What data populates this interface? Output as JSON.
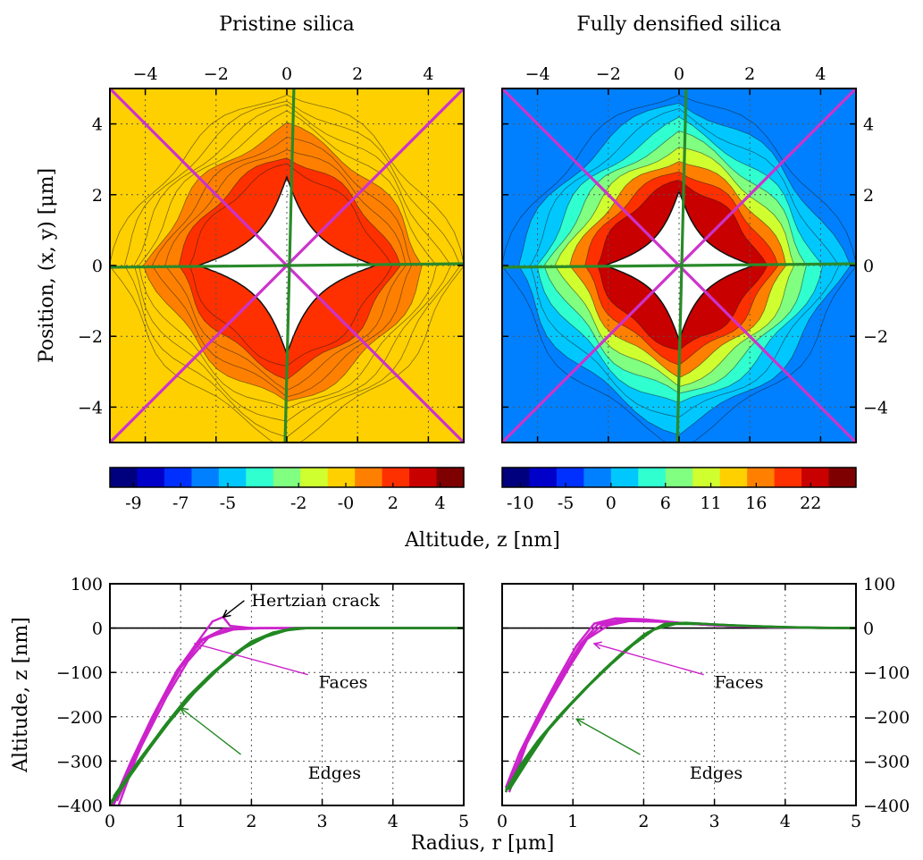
{
  "colors": {
    "faces": "#cc22cc",
    "edges": "#228822",
    "diagonal_lines": "#cc33cc",
    "axis_lines": "#2a8a2a",
    "colormap": [
      "#00007f",
      "#0000c8",
      "#0030ff",
      "#0080ff",
      "#00c8ff",
      "#30ffd0",
      "#80ff80",
      "#d0ff30",
      "#ffd000",
      "#ff8000",
      "#ff3000",
      "#c80000",
      "#7f0000"
    ]
  },
  "chart_data": [
    {
      "id": "map_pristine",
      "type": "heatmap",
      "title": "Pristine silica",
      "ylabel": "Position, (x, y) [μm]",
      "xlim": [
        -5,
        5
      ],
      "ylim": [
        -5,
        5
      ],
      "x_ticks": [
        "−4",
        "−2",
        "0",
        "2",
        "4"
      ],
      "y_ticks": [
        "4",
        "2",
        "0",
        "−2",
        "−4"
      ],
      "x_tick_values": [
        -4,
        -2,
        0,
        2,
        4
      ],
      "y_tick_values": [
        4,
        2,
        0,
        -2,
        -4
      ],
      "grid": true,
      "indent_half_diagonal": 2.5,
      "background_level": 0.62,
      "pileup_level": 0.82,
      "colorbar": {
        "ticks": [
          "-9",
          "-7",
          "-5",
          "-2",
          "-0",
          "2",
          "4"
        ],
        "range": [
          -10,
          5
        ],
        "tick_values": [
          -9,
          -7,
          -5,
          -2,
          0,
          2,
          4
        ]
      }
    },
    {
      "id": "map_densified",
      "type": "heatmap",
      "title": "Fully densified silica",
      "xlim": [
        -5,
        5
      ],
      "ylim": [
        -5,
        5
      ],
      "x_ticks": [
        "−4",
        "−2",
        "0",
        "2",
        "4"
      ],
      "y_ticks": [
        "4",
        "2",
        "0",
        "−2",
        "−4"
      ],
      "x_tick_values": [
        -4,
        -2,
        0,
        2,
        4
      ],
      "y_tick_values": [
        4,
        2,
        0,
        -2,
        -4
      ],
      "grid": true,
      "indent_half_diagonal": 2.1,
      "background_level": 0.28,
      "pileup_level": 0.92,
      "colorbar": {
        "ticks": [
          "-10",
          "-5",
          "0",
          "6",
          "11",
          "16",
          "22"
        ],
        "range": [
          -12,
          27
        ],
        "tick_values": [
          -10,
          -5,
          0,
          6,
          11,
          16,
          22
        ]
      }
    },
    {
      "id": "profile_pristine",
      "type": "line",
      "xlabel": "Radius, r [μm]",
      "ylabel": "Altitude, z [nm]",
      "xlim": [
        0,
        5
      ],
      "ylim": [
        -400,
        100
      ],
      "x_ticks": [
        "0",
        "1",
        "2",
        "3",
        "4",
        "5"
      ],
      "y_ticks": [
        "100",
        "0",
        "−100",
        "−200",
        "−300",
        "−400"
      ],
      "x_tick_values": [
        0,
        1,
        2,
        3,
        4,
        5
      ],
      "y_tick_values": [
        100,
        0,
        -100,
        -200,
        -300,
        -400
      ],
      "grid": true,
      "series": [
        {
          "group": "faces",
          "x": [
            0.0,
            0.3,
            0.6,
            0.9,
            1.2,
            1.45,
            1.6,
            1.7,
            2.0,
            3.0,
            5.0
          ],
          "y": [
            -410,
            -300,
            -200,
            -110,
            -40,
            15,
            25,
            5,
            0,
            0,
            0
          ]
        },
        {
          "group": "faces",
          "x": [
            0.05,
            0.35,
            0.65,
            0.95,
            1.25,
            1.6,
            2.0,
            3.0,
            5.0
          ],
          "y": [
            -400,
            -290,
            -185,
            -95,
            -30,
            -2,
            0,
            0,
            0
          ]
        },
        {
          "group": "faces",
          "x": [
            0.1,
            0.4,
            0.7,
            1.0,
            1.3,
            1.65,
            2.1,
            3.0,
            5.0
          ],
          "y": [
            -410,
            -280,
            -175,
            -90,
            -28,
            -4,
            0,
            0,
            0
          ]
        },
        {
          "group": "faces",
          "x": [
            0.1,
            0.45,
            0.8,
            1.1,
            1.4,
            1.75,
            2.2,
            3.0,
            5.0
          ],
          "y": [
            -390,
            -265,
            -155,
            -75,
            -20,
            -3,
            0,
            0,
            0
          ]
        },
        {
          "group": "edges",
          "x": [
            0.0,
            0.3,
            0.7,
            1.0,
            1.3,
            1.6,
            1.9,
            2.2,
            2.5,
            2.8,
            5.0
          ],
          "y": [
            -400,
            -330,
            -240,
            -180,
            -125,
            -80,
            -45,
            -20,
            -5,
            0,
            0
          ]
        },
        {
          "group": "edges",
          "x": [
            0.0,
            0.35,
            0.75,
            1.05,
            1.4,
            1.7,
            2.0,
            2.3,
            2.6,
            5.0
          ],
          "y": [
            -395,
            -315,
            -225,
            -165,
            -110,
            -65,
            -30,
            -10,
            0,
            0
          ]
        },
        {
          "group": "edges",
          "x": [
            0.05,
            0.4,
            0.8,
            1.1,
            1.45,
            1.8,
            2.1,
            2.4,
            2.7,
            5.0
          ],
          "y": [
            -380,
            -300,
            -215,
            -155,
            -100,
            -55,
            -25,
            -8,
            0,
            0
          ]
        },
        {
          "group": "edges",
          "x": [
            0.05,
            0.4,
            0.85,
            1.2,
            1.55,
            1.9,
            2.2,
            2.5,
            2.8,
            5.0
          ],
          "y": [
            -390,
            -305,
            -210,
            -145,
            -90,
            -45,
            -18,
            -4,
            0,
            0
          ]
        }
      ],
      "annotations": [
        {
          "text": "Hertzian crack",
          "text_at": [
            2.0,
            50
          ],
          "arrow_to": [
            1.6,
            25
          ],
          "group": "none"
        },
        {
          "text": "Faces",
          "text_at": [
            2.95,
            -135
          ],
          "arrow_from": [
            2.8,
            -105
          ],
          "arrow_to": [
            1.2,
            -35
          ],
          "group": "faces"
        },
        {
          "text": "Edges",
          "text_at": [
            2.8,
            -340
          ],
          "arrow_from": [
            1.85,
            -285
          ],
          "arrow_to": [
            1.0,
            -180
          ],
          "group": "edges"
        }
      ]
    },
    {
      "id": "profile_densified",
      "type": "line",
      "xlim": [
        0,
        5
      ],
      "ylim": [
        -400,
        100
      ],
      "x_ticks": [
        "0",
        "1",
        "2",
        "3",
        "4",
        "5"
      ],
      "y_ticks": [
        "100",
        "0",
        "−100",
        "−200",
        "−300",
        "−400"
      ],
      "x_tick_values": [
        0,
        1,
        2,
        3,
        4,
        5
      ],
      "y_tick_values": [
        100,
        0,
        -100,
        -200,
        -300,
        -400
      ],
      "grid": true,
      "series": [
        {
          "group": "faces",
          "x": [
            0.05,
            0.25,
            0.5,
            0.8,
            1.05,
            1.3,
            1.6,
            2.0,
            2.5,
            3.0,
            4.0,
            5.0
          ],
          "y": [
            -360,
            -280,
            -200,
            -110,
            -40,
            10,
            22,
            20,
            12,
            6,
            2,
            0
          ]
        },
        {
          "group": "faces",
          "x": [
            0.05,
            0.3,
            0.55,
            0.85,
            1.1,
            1.35,
            1.7,
            2.1,
            2.6,
            3.2,
            4.0,
            5.0
          ],
          "y": [
            -370,
            -275,
            -190,
            -105,
            -38,
            8,
            20,
            18,
            10,
            5,
            1,
            0
          ]
        },
        {
          "group": "faces",
          "x": [
            0.1,
            0.3,
            0.6,
            0.9,
            1.15,
            1.4,
            1.75,
            2.2,
            2.7,
            3.3,
            4.2,
            5.0
          ],
          "y": [
            -365,
            -270,
            -180,
            -95,
            -30,
            5,
            18,
            16,
            9,
            4,
            1,
            0
          ]
        },
        {
          "group": "faces",
          "x": [
            0.1,
            0.35,
            0.65,
            0.95,
            1.2,
            1.5,
            1.8,
            2.3,
            2.8,
            3.5,
            4.5,
            5.0
          ],
          "y": [
            -370,
            -260,
            -170,
            -88,
            -25,
            6,
            16,
            14,
            8,
            3,
            0,
            0
          ]
        },
        {
          "group": "edges",
          "x": [
            0.05,
            0.25,
            0.5,
            0.8,
            1.1,
            1.4,
            1.7,
            2.0,
            2.3,
            2.6,
            3.0,
            4.0,
            5.0
          ],
          "y": [
            -370,
            -310,
            -255,
            -200,
            -150,
            -100,
            -55,
            -15,
            10,
            12,
            8,
            2,
            0
          ]
        },
        {
          "group": "edges",
          "x": [
            0.05,
            0.3,
            0.55,
            0.85,
            1.15,
            1.45,
            1.75,
            2.05,
            2.35,
            2.7,
            3.2,
            4.2,
            5.0
          ],
          "y": [
            -365,
            -300,
            -245,
            -190,
            -140,
            -92,
            -48,
            -10,
            10,
            11,
            6,
            1,
            0
          ]
        },
        {
          "group": "edges",
          "x": [
            0.1,
            0.35,
            0.6,
            0.9,
            1.2,
            1.5,
            1.8,
            2.1,
            2.4,
            2.8,
            3.4,
            4.4,
            5.0
          ],
          "y": [
            -360,
            -295,
            -238,
            -182,
            -132,
            -85,
            -42,
            -6,
            10,
            10,
            5,
            1,
            0
          ]
        },
        {
          "group": "edges",
          "x": [
            0.1,
            0.4,
            0.65,
            0.95,
            1.25,
            1.55,
            1.85,
            2.15,
            2.45,
            2.9,
            3.5,
            4.5,
            5.0
          ],
          "y": [
            -365,
            -290,
            -230,
            -176,
            -126,
            -80,
            -38,
            -3,
            9,
            9,
            4,
            0,
            0
          ]
        }
      ],
      "annotations": [
        {
          "text": "Faces",
          "text_at": [
            3.0,
            -135
          ],
          "arrow_from": [
            2.85,
            -105
          ],
          "arrow_to": [
            1.3,
            -35
          ],
          "group": "faces"
        },
        {
          "text": "Edges",
          "text_at": [
            2.65,
            -340
          ],
          "arrow_from": [
            1.95,
            -285
          ],
          "arrow_to": [
            1.05,
            -205
          ],
          "group": "edges"
        }
      ]
    }
  ],
  "shared": {
    "colorbar_label": "Altitude, z [nm]"
  }
}
